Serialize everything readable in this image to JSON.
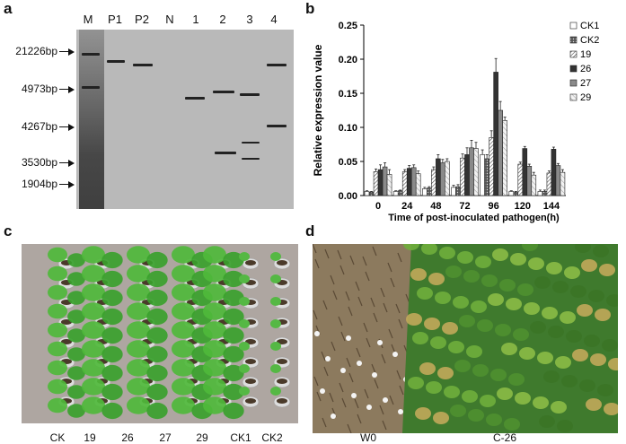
{
  "panels": {
    "a": {
      "letter": "a",
      "lanes": [
        "M",
        "P1",
        "P2",
        "N",
        "1",
        "2",
        "3",
        "4"
      ],
      "bp_markers": [
        "21226bp",
        "4973bp",
        "4267bp",
        "3530bp",
        "1904bp"
      ]
    },
    "b": {
      "letter": "b"
    },
    "c": {
      "letter": "c",
      "labels": [
        "CK",
        "19",
        "26",
        "27",
        "29",
        "CK1",
        "CK2"
      ]
    },
    "d": {
      "letter": "d",
      "labels": [
        "W0",
        "C-26"
      ]
    }
  },
  "chart_data": {
    "type": "bar",
    "xlabel": "Time of post-inoculated pathogen(h)",
    "ylabel": "Relative expression value",
    "ylim": [
      0,
      0.25
    ],
    "yticks": [
      "0.00",
      "0.05",
      "0.10",
      "0.15",
      "0.20",
      "0.25"
    ],
    "categories": [
      "0",
      "24",
      "48",
      "72",
      "96",
      "120",
      "144"
    ],
    "legend_position": "right",
    "series": [
      {
        "name": "CK1",
        "pattern": "white",
        "values": [
          0.006,
          0.006,
          0.01,
          0.012,
          0.06,
          0.006,
          0.006
        ]
      },
      {
        "name": "CK2",
        "pattern": "dots",
        "values": [
          0.005,
          0.007,
          0.011,
          0.013,
          0.054,
          0.005,
          0.006
        ]
      },
      {
        "name": "19",
        "pattern": "hatch",
        "values": [
          0.035,
          0.035,
          0.038,
          0.055,
          0.085,
          0.046,
          0.033
        ]
      },
      {
        "name": "26",
        "pattern": "black",
        "values": [
          0.038,
          0.04,
          0.054,
          0.06,
          0.181,
          0.069,
          0.068
        ]
      },
      {
        "name": "27",
        "pattern": "gray",
        "values": [
          0.042,
          0.041,
          0.048,
          0.07,
          0.125,
          0.043,
          0.044
        ]
      },
      {
        "name": "29",
        "pattern": "light",
        "values": [
          0.031,
          0.032,
          0.05,
          0.069,
          0.11,
          0.03,
          0.034
        ]
      }
    ],
    "errors": [
      [
        0.001,
        0.001,
        0.002,
        0.003,
        0.007,
        0.001,
        0.002
      ],
      [
        0.001,
        0.001,
        0.002,
        0.003,
        0.006,
        0.001,
        0.002
      ],
      [
        0.004,
        0.003,
        0.004,
        0.006,
        0.01,
        0.003,
        0.003
      ],
      [
        0.007,
        0.004,
        0.006,
        0.01,
        0.02,
        0.003,
        0.003
      ],
      [
        0.006,
        0.004,
        0.005,
        0.011,
        0.013,
        0.003,
        0.003
      ],
      [
        0.007,
        0.004,
        0.004,
        0.009,
        0.005,
        0.004,
        0.004
      ]
    ]
  }
}
